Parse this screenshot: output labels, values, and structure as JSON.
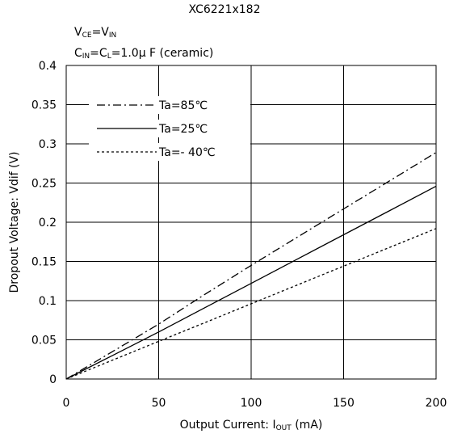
{
  "chart_data": {
    "type": "line",
    "title": "XC6221x182",
    "condition_line1": {
      "v": "V",
      "ce_sub": "CE",
      "eq": "=V",
      "in_sub": "IN"
    },
    "condition_line2": {
      "c1": "C",
      "in_sub": "IN",
      "eq": "=C",
      "l_sub": "L",
      "rest": "=1.0μ F (ceramic)"
    },
    "xlabel": {
      "main": "Output Current: I",
      "sub": "OUT",
      "unit": " (mA)"
    },
    "ylabel": "Dropout Voltage: Vdif  (V)",
    "xlim": [
      0,
      200
    ],
    "ylim": [
      0,
      0.4
    ],
    "x_ticks": [
      "0",
      "50",
      "100",
      "150",
      "200"
    ],
    "y_ticks": [
      "0",
      "0.05",
      "0.1",
      "0.15",
      "0.2",
      "0.25",
      "0.3",
      "0.35",
      "0.4"
    ],
    "grid": true,
    "legend_position": "top-left",
    "series": [
      {
        "name": "Ta=85℃",
        "style": "dashdot",
        "x": [
          0,
          25,
          50,
          75,
          100,
          125,
          150,
          175,
          200
        ],
        "y": [
          0,
          0.035,
          0.07,
          0.108,
          0.145,
          0.181,
          0.217,
          0.253,
          0.289
        ]
      },
      {
        "name": "Ta=25℃",
        "style": "solid",
        "x": [
          0,
          25,
          50,
          75,
          100,
          125,
          150,
          175,
          200
        ],
        "y": [
          0,
          0.03,
          0.06,
          0.091,
          0.122,
          0.153,
          0.184,
          0.215,
          0.246
        ]
      },
      {
        "name": "Ta=- 40℃",
        "style": "dotted",
        "x": [
          0,
          25,
          50,
          75,
          100,
          125,
          150,
          175,
          200
        ],
        "y": [
          0,
          0.024,
          0.048,
          0.072,
          0.096,
          0.12,
          0.144,
          0.168,
          0.192
        ]
      }
    ]
  }
}
